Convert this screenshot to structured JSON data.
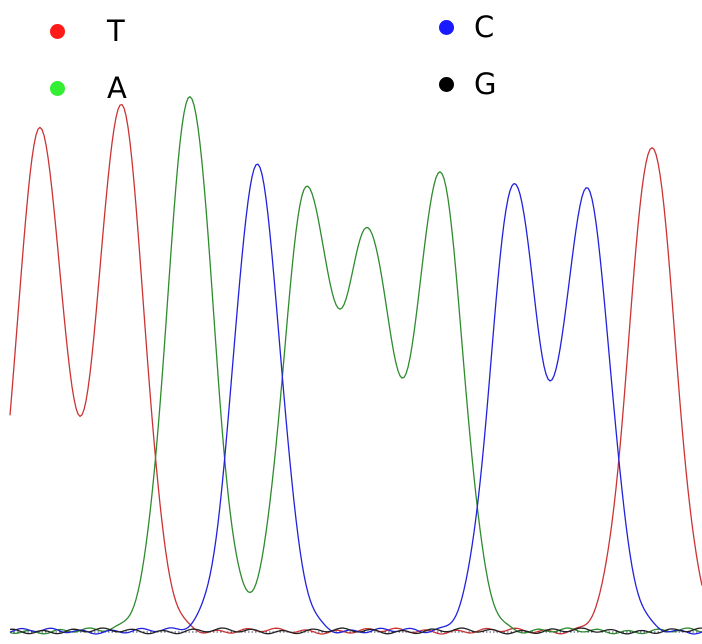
{
  "chart_data": {
    "type": "line",
    "title": "",
    "xlabel": "",
    "ylabel": "",
    "grid": false,
    "legend_position": "top",
    "legend": [
      {
        "label": "T",
        "color": "#ff1a1a"
      },
      {
        "label": "A",
        "color": "#33ee33"
      },
      {
        "label": "C",
        "color": "#1a1aff"
      },
      {
        "label": "G",
        "color": "#000000"
      }
    ],
    "series": [
      {
        "base": "T",
        "color": "#cc3333",
        "peaks": [
          {
            "position": 40,
            "height": 100
          },
          {
            "position": 121,
            "height": 105
          },
          {
            "position": 652,
            "height": 97
          }
        ]
      },
      {
        "base": "A",
        "color": "#2e8b2e",
        "peaks": [
          {
            "position": 190,
            "height": 107
          },
          {
            "position": 306,
            "height": 87
          },
          {
            "position": 369,
            "height": 78
          },
          {
            "position": 440,
            "height": 91
          }
        ]
      },
      {
        "base": "C",
        "color": "#2222dd",
        "peaks": [
          {
            "position": 257,
            "height": 93
          },
          {
            "position": 514,
            "height": 89
          },
          {
            "position": 587,
            "height": 88
          }
        ]
      },
      {
        "base": "G",
        "color": "#222222",
        "peaks": []
      }
    ]
  }
}
